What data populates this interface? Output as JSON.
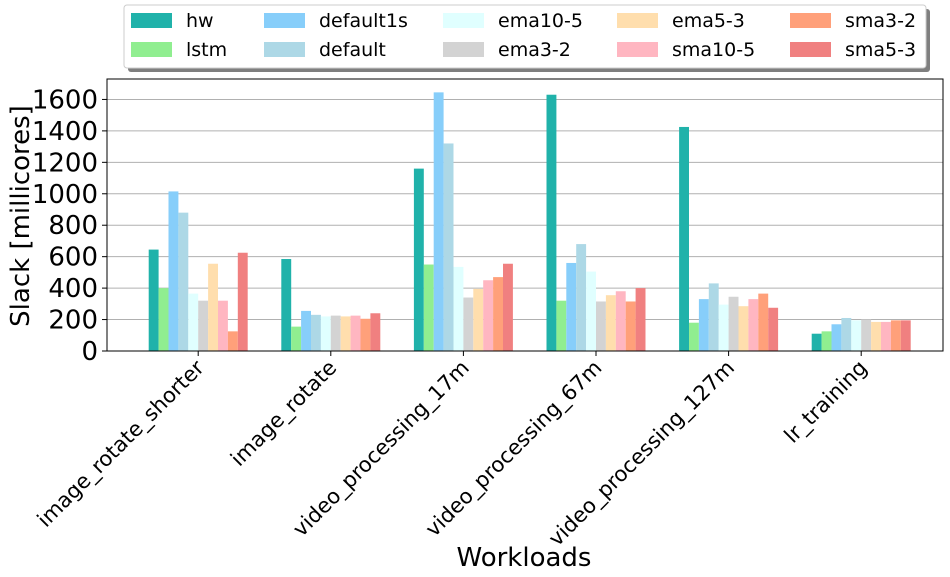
{
  "chart_data": {
    "type": "bar",
    "title": "",
    "xlabel": "Workloads",
    "ylabel": "Slack [millicores]",
    "ylim": [
      0,
      1730
    ],
    "yticks": [
      0,
      200,
      400,
      600,
      800,
      1000,
      1200,
      1400,
      1600
    ],
    "grid": "y",
    "legend_position": "top",
    "categories": [
      "image_rotate_shorter",
      "image_rotate",
      "video_processing_17m",
      "video_processing_67m",
      "video_processing_127m",
      "lr_training"
    ],
    "series": [
      {
        "name": "hw",
        "color": "#20b2aa",
        "values": [
          645,
          585,
          1160,
          1630,
          1425,
          110
        ]
      },
      {
        "name": "lstm",
        "color": "#90ee90",
        "values": [
          400,
          155,
          550,
          320,
          180,
          125
        ]
      },
      {
        "name": "default1s",
        "color": "#87cefa",
        "values": [
          1015,
          255,
          1645,
          560,
          330,
          170
        ]
      },
      {
        "name": "default",
        "color": "#add8e6",
        "values": [
          880,
          230,
          1320,
          680,
          430,
          210
        ]
      },
      {
        "name": "ema10-5",
        "color": "#e0ffff",
        "values": [
          365,
          220,
          535,
          505,
          295,
          195
        ]
      },
      {
        "name": "ema3-2",
        "color": "#d3d3d3",
        "values": [
          320,
          225,
          340,
          315,
          345,
          200
        ]
      },
      {
        "name": "ema5-3",
        "color": "#ffdead",
        "values": [
          555,
          220,
          395,
          355,
          285,
          185
        ]
      },
      {
        "name": "sma10-5",
        "color": "#ffb6c1",
        "values": [
          320,
          225,
          450,
          380,
          330,
          185
        ]
      },
      {
        "name": "sma3-2",
        "color": "#ffa07a",
        "values": [
          125,
          205,
          470,
          315,
          365,
          195
        ]
      },
      {
        "name": "sma5-3",
        "color": "#f08080",
        "values": [
          625,
          240,
          555,
          400,
          275,
          195
        ]
      }
    ]
  }
}
